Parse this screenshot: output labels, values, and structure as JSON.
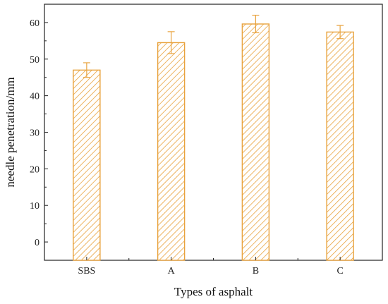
{
  "chart_data": {
    "type": "bar",
    "title": "",
    "xlabel": "Types of asphalt",
    "ylabel": "needle penetration/mm",
    "categories": [
      "SBS",
      "A",
      "B",
      "C"
    ],
    "values": [
      47.0,
      54.5,
      59.6,
      57.4
    ],
    "errors": [
      2.0,
      3.0,
      2.4,
      1.8
    ],
    "ylim": [
      -5,
      65
    ],
    "yticks": [
      0,
      10,
      20,
      30,
      40,
      50,
      60
    ],
    "grid": false,
    "legend": "none",
    "bar_color": "#e8a23c",
    "bar_pattern": "diagonal-hatch"
  }
}
